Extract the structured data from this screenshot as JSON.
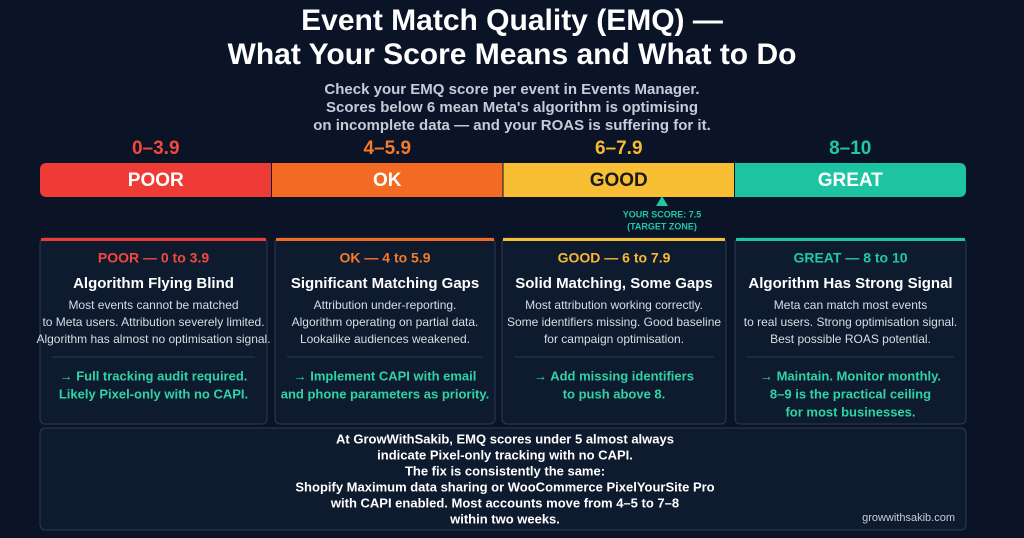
{
  "header": {
    "title": [
      "Event Match Quality (EMQ) —",
      "What Your Score Means and What to Do"
    ],
    "subtitle": [
      "Check your EMQ score per event in Events Manager.",
      "Scores below 6 mean Meta's algorithm is optimising",
      "on incomplete data — and your ROAS is suffering for it."
    ]
  },
  "scale": {
    "segments": [
      {
        "range": "0–3.9",
        "label": "POOR",
        "color": "#ef3b36",
        "range_color": "#f2483d"
      },
      {
        "range": "4–5.9",
        "label": "OK",
        "color": "#f26a24",
        "range_color": "#f57a2b"
      },
      {
        "range": "6–7.9",
        "label": "GOOD",
        "color": "#f8bf34",
        "range_color": "#f7b933"
      },
      {
        "range": "8–10",
        "label": "GREAT",
        "color": "#1cc4a2",
        "range_color": "#1fc9a5"
      }
    ],
    "marker": [
      "YOUR SCORE: 7.5",
      "(TARGET ZONE)"
    ]
  },
  "cards": [
    {
      "heading": "POOR — 0 to 3.9",
      "title": "Algorithm Flying Blind",
      "body": [
        "Most events cannot be matched",
        "to Meta users. Attribution severely limited.",
        "Algorithm has almost no optimisation signal."
      ],
      "action": [
        "→ Full tracking audit required.",
        "Likely Pixel-only with no CAPI."
      ]
    },
    {
      "heading": "OK — 4 to 5.9",
      "title": "Significant Matching Gaps",
      "body": [
        "Attribution under-reporting.",
        "Algorithm operating on partial data.",
        "Lookalike audiences weakened."
      ],
      "action": [
        "→ Implement CAPI with email",
        "and phone parameters as priority."
      ]
    },
    {
      "heading": "GOOD — 6 to 7.9",
      "title": "Solid Matching, Some Gaps",
      "body": [
        "Most attribution working correctly.",
        "Some identifiers missing. Good baseline",
        "for campaign optimisation."
      ],
      "action": [
        "→ Add missing identifiers",
        "to push above 8."
      ]
    },
    {
      "heading": "GREAT — 8 to 10",
      "title": "Algorithm Has Strong Signal",
      "body": [
        "Meta can match most events",
        "to real users. Strong optimisation signal.",
        "Best possible ROAS potential."
      ],
      "action": [
        "→ Maintain. Monitor monthly.",
        "8–9 is the practical ceiling",
        "for most businesses."
      ]
    }
  ],
  "footer": {
    "lines": [
      "At GrowWithSakib, EMQ scores under 5 almost always",
      "indicate Pixel-only tracking with no CAPI.",
      "The fix is consistently the same:",
      "Shopify Maximum data sharing or WooCommerce PixelYourSite Pro",
      "with CAPI enabled. Most accounts move from 4–5 to 7–8",
      "within two weeks."
    ],
    "site": "growwithsakib.com"
  }
}
